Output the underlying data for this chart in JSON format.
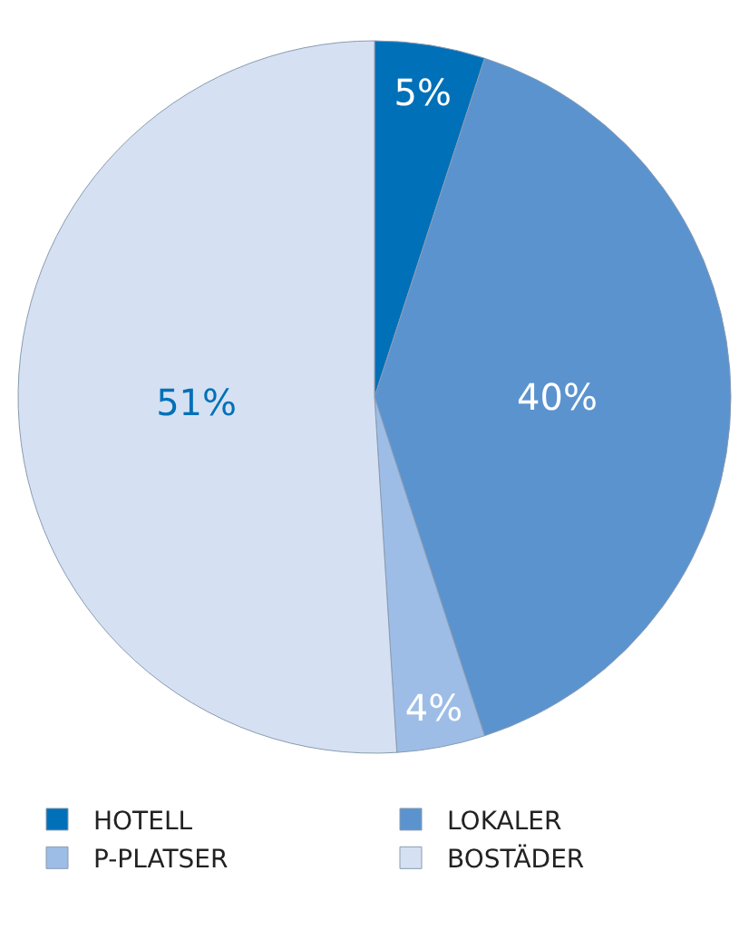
{
  "chart_data": {
    "type": "pie",
    "categories": [
      "HOTELL",
      "LOKALER",
      "P-PLATSER",
      "BOSTÄDER"
    ],
    "values": [
      5,
      40,
      4,
      51
    ],
    "colors": [
      "#0070b8",
      "#5b93cf",
      "#9dbde6",
      "#d5e1f2"
    ],
    "value_labels": [
      "5%",
      "40%",
      "4%",
      "51%"
    ],
    "legend": "bottom"
  }
}
